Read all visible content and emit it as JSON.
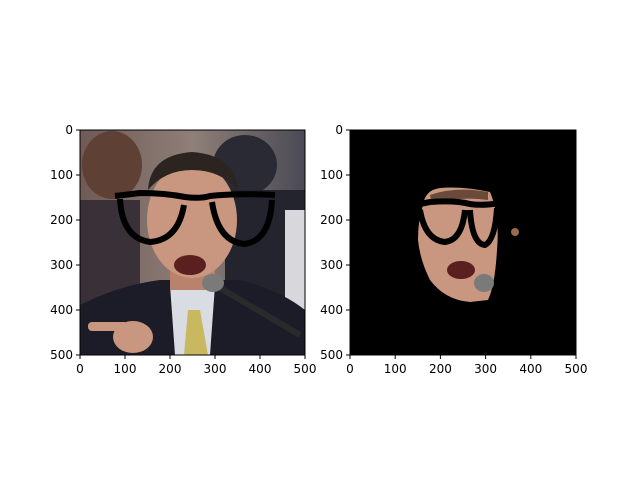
{
  "chart_data": [
    {
      "type": "image",
      "image_content": "photo of a man in a suit speaking at a microphone and pointing, with cartoon black thick-framed glasses overlaid on his face",
      "xlim": [
        0,
        500
      ],
      "ylim": [
        500,
        0
      ],
      "xticks": [
        0,
        100,
        200,
        300,
        400,
        500
      ],
      "yticks": [
        0,
        100,
        200,
        300,
        400,
        500
      ],
      "xtick_labels": [
        "0",
        "100",
        "200",
        "300",
        "400",
        "500"
      ],
      "ytick_labels": [
        "0",
        "100",
        "200",
        "300",
        "400",
        "500"
      ],
      "colors": {
        "background_top": "#8f7a6e",
        "suit": "#1c1c28",
        "skin": "#c99680",
        "glasses": "#000000"
      }
    },
    {
      "type": "image",
      "image_content": "segmentation mask: black background with only the face region of the same man (including overlaid glasses) visible",
      "xlim": [
        0,
        500
      ],
      "ylim": [
        500,
        0
      ],
      "xticks": [
        0,
        100,
        200,
        300,
        400,
        500
      ],
      "yticks": [
        0,
        100,
        200,
        300,
        400,
        500
      ],
      "xtick_labels": [
        "0",
        "100",
        "200",
        "300",
        "400",
        "500"
      ],
      "ytick_labels": [
        "0",
        "100",
        "200",
        "300",
        "400",
        "500"
      ],
      "colors": {
        "background": "#000000",
        "skin": "#c99680",
        "glasses": "#000000"
      }
    }
  ]
}
